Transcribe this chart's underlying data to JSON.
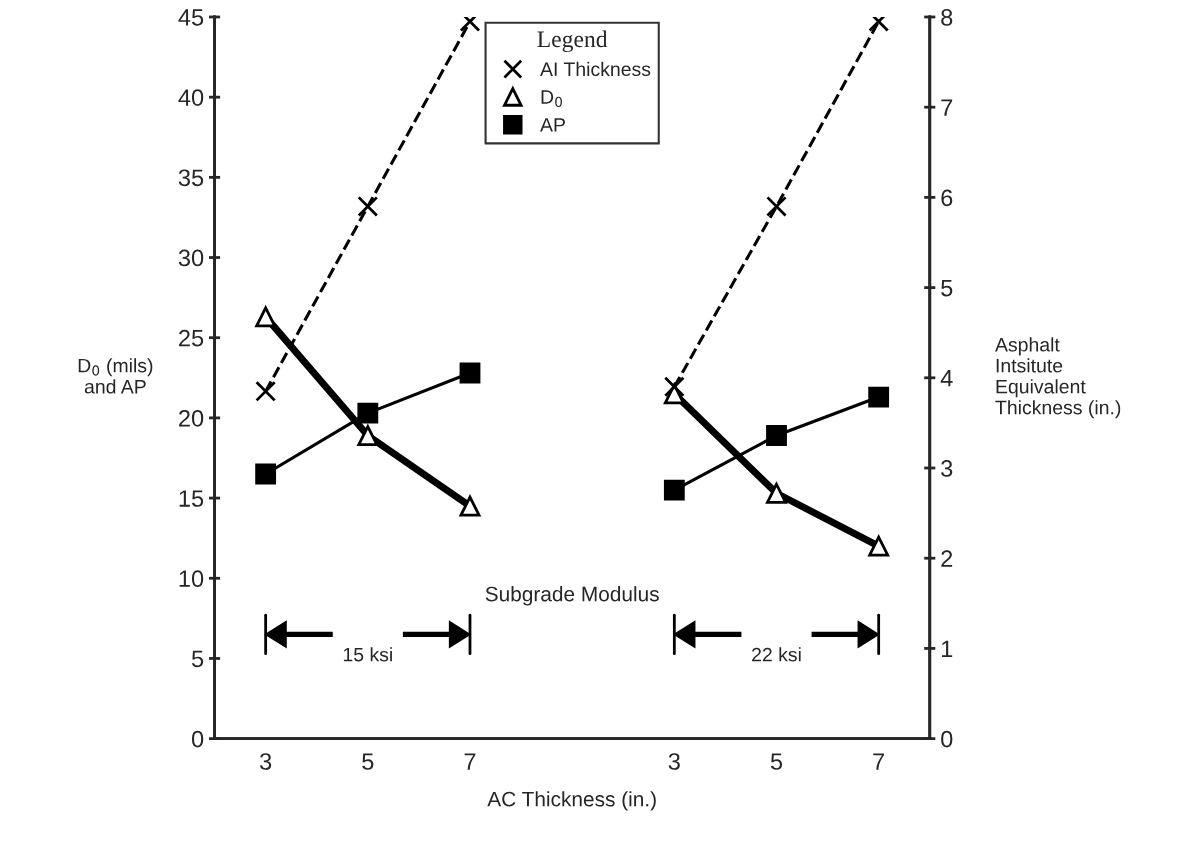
{
  "chart_data": {
    "type": "line",
    "categories": [
      "3",
      "5",
      "7",
      null,
      "3",
      "5",
      "7"
    ],
    "xlabel": "AC Thickness (in.)",
    "ylabel": "D$_{0}$ (mils)\nand AP",
    "y2label": "Asphalt\nIntsitute\nEquivalent\nThickness (in.)",
    "legend_title": "Legend",
    "legend": "top",
    "grid": false,
    "ylim": [
      0,
      45
    ],
    "yticks": [
      0,
      5,
      10,
      15,
      20,
      25,
      30,
      35,
      40,
      45
    ],
    "y2lim": [
      0,
      8
    ],
    "y2ticks": [
      0,
      1,
      2,
      3,
      4,
      5,
      6,
      7,
      8
    ],
    "series": [
      {
        "name": "AI Thickness",
        "color": "#000000",
        "axis": "y2",
        "marker": "cross",
        "line_style": "dashed",
        "values": [
          3.85,
          5.9,
          7.95,
          null,
          3.9,
          5.9,
          7.95
        ]
      },
      {
        "name": "D$_{0}$",
        "color": "#000000",
        "marker": "triangle",
        "line_style": "solid",
        "values": [
          26.3,
          18.9,
          14.5,
          null,
          21.5,
          15.3,
          12.0
        ]
      },
      {
        "name": "AP",
        "color": "#000000",
        "marker": "square",
        "line_style": "solid",
        "values": [
          16.5,
          20.3,
          22.8,
          null,
          15.5,
          18.9,
          21.3
        ]
      }
    ],
    "annotations": [
      "Subgrade Modulus",
      "15 ksi",
      "22 ksi"
    ]
  }
}
